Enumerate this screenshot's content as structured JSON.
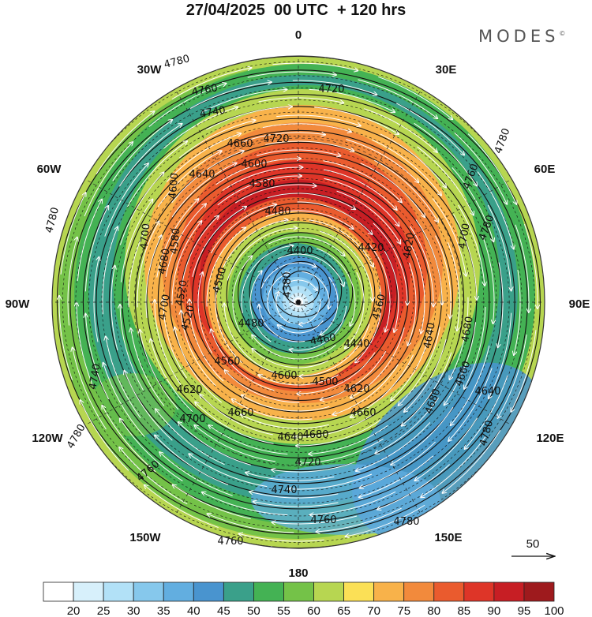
{
  "title": "27/04/2025  00 UTC  + 120 hrs",
  "brand": "MODES",
  "brand_mark": "©",
  "longitude_labels": [
    "0",
    "30E",
    "60E",
    "90E",
    "120E",
    "150E",
    "180",
    "150W",
    "120W",
    "90W",
    "60W",
    "30W"
  ],
  "contour_labels": [
    "4380",
    "4400",
    "4420",
    "4440",
    "4460",
    "4480",
    "4500",
    "4520",
    "4540",
    "4560",
    "4580",
    "4600",
    "4620",
    "4640",
    "4660",
    "4680",
    "4700",
    "4720",
    "4740",
    "4760",
    "4780"
  ],
  "vector_reference": "50",
  "colorbar": {
    "ticks": [
      "20",
      "25",
      "30",
      "35",
      "40",
      "45",
      "50",
      "55",
      "60",
      "65",
      "70",
      "75",
      "80",
      "85",
      "90",
      "95",
      "100"
    ],
    "colors": [
      "#ffffff",
      "#d7f0fb",
      "#b2e1f7",
      "#86c8ec",
      "#62aee0",
      "#4994cf",
      "#3aa08a",
      "#44b254",
      "#74c248",
      "#b7d651",
      "#fbe056",
      "#f8b24a",
      "#f28a3c",
      "#ea5b2e",
      "#de3528",
      "#c71e24",
      "#9e1a1d"
    ]
  }
}
